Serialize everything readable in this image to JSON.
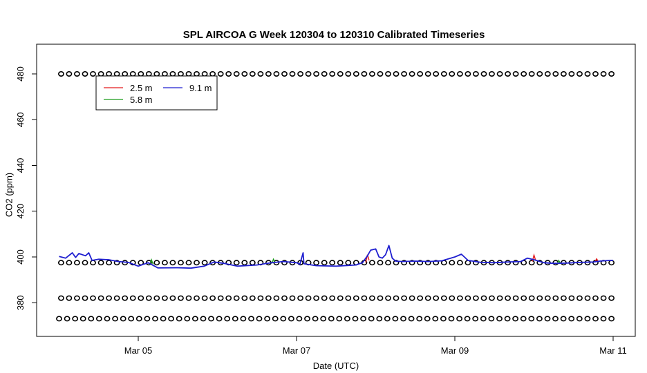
{
  "chart_data": {
    "type": "line",
    "title": "SPL AIRCOA G  Week 120304 to 120310  Calibrated Timeseries",
    "xlabel": "Date (UTC)",
    "ylabel": "CO2 (ppm)",
    "xlim": [
      "2012-03-04",
      "2012-03-11"
    ],
    "ylim": [
      368,
      485
    ],
    "x_ticks": [
      "Mar 05",
      "Mar 07",
      "Mar 09",
      "Mar 11"
    ],
    "y_ticks": [
      380,
      400,
      420,
      440,
      460,
      480
    ],
    "legend": {
      "placement": "top-left",
      "entries": [
        {
          "label": "2.5 m",
          "color": "#e41a1c"
        },
        {
          "label": "9.1 m",
          "color": "#1f1fd0"
        },
        {
          "label": "5.8 m",
          "color": "#1a9c1a"
        }
      ]
    },
    "series": [
      {
        "name": "9.1 m",
        "color": "#1f1fd0",
        "points": [
          [
            "2012-03-04 00:00",
            400.2
          ],
          [
            "2012-03-04 02:00",
            399.5
          ],
          [
            "2012-03-04 04:00",
            401.8
          ],
          [
            "2012-03-04 05:00",
            399.8
          ],
          [
            "2012-03-04 06:00",
            401.5
          ],
          [
            "2012-03-04 08:00",
            400.5
          ],
          [
            "2012-03-04 09:00",
            401.8
          ],
          [
            "2012-03-04 10:00",
            398.5
          ],
          [
            "2012-03-04 12:00",
            399.0
          ],
          [
            "2012-03-04 15:00",
            398.8
          ],
          [
            "2012-03-04 18:00",
            398.0
          ],
          [
            "2012-03-04 21:00",
            397.6
          ],
          [
            "2012-03-05 00:00",
            396.0
          ],
          [
            "2012-03-05 03:00",
            397.5
          ],
          [
            "2012-03-05 06:00",
            395.2
          ],
          [
            "2012-03-05 12:00",
            395.3
          ],
          [
            "2012-03-05 16:00",
            395.1
          ],
          [
            "2012-03-05 20:00",
            396.0
          ],
          [
            "2012-03-05 23:00",
            397.8
          ],
          [
            "2012-03-06 02:00",
            397.2
          ],
          [
            "2012-03-06 06:00",
            396.0
          ],
          [
            "2012-03-06 12:00",
            396.5
          ],
          [
            "2012-03-06 16:00",
            397.4
          ],
          [
            "2012-03-06 20:00",
            398.0
          ],
          [
            "2012-03-07 00:00",
            397.5
          ],
          [
            "2012-03-07 01:00",
            396.8
          ],
          [
            "2012-03-07 02:00",
            401.8
          ],
          [
            "2012-03-07 02:15",
            397.0
          ],
          [
            "2012-03-07 06:00",
            396.2
          ],
          [
            "2012-03-07 12:00",
            396.0
          ],
          [
            "2012-03-07 18:00",
            396.5
          ],
          [
            "2012-03-07 20:00",
            397.5
          ],
          [
            "2012-03-07 21:30",
            400.5
          ],
          [
            "2012-03-07 22:30",
            403.0
          ],
          [
            "2012-03-08 00:00",
            403.5
          ],
          [
            "2012-03-08 01:00",
            400.0
          ],
          [
            "2012-03-08 02:00",
            399.5
          ],
          [
            "2012-03-08 03:00",
            401.0
          ],
          [
            "2012-03-08 04:00",
            405.0
          ],
          [
            "2012-03-08 05:00",
            399.5
          ],
          [
            "2012-03-08 06:00",
            398.2
          ],
          [
            "2012-03-08 08:00",
            398.0
          ],
          [
            "2012-03-08 12:00",
            398.2
          ],
          [
            "2012-03-08 16:00",
            398.0
          ],
          [
            "2012-03-08 20:00",
            398.3
          ],
          [
            "2012-03-09 00:00",
            400.0
          ],
          [
            "2012-03-09 02:00",
            401.2
          ],
          [
            "2012-03-09 04:00",
            398.5
          ],
          [
            "2012-03-09 08:00",
            397.6
          ],
          [
            "2012-03-09 12:00",
            397.5
          ],
          [
            "2012-03-09 16:00",
            397.8
          ],
          [
            "2012-03-09 20:00",
            398.0
          ],
          [
            "2012-03-09 22:00",
            399.5
          ],
          [
            "2012-03-10 00:00",
            398.8
          ],
          [
            "2012-03-10 03:00",
            397.5
          ],
          [
            "2012-03-10 06:00",
            397.2
          ],
          [
            "2012-03-10 10:00",
            397.3
          ],
          [
            "2012-03-10 14:00",
            397.6
          ],
          [
            "2012-03-10 18:00",
            397.8
          ],
          [
            "2012-03-10 20:00",
            398.2
          ],
          [
            "2012-03-10 23:00",
            398.5
          ],
          [
            "2012-03-11 00:00",
            398.5
          ]
        ]
      },
      {
        "name": "2.5 m",
        "color": "#e41a1c",
        "points": [
          [
            "2012-03-09 23:30",
            398.0
          ],
          [
            "2012-03-10 00:00",
            400.8
          ],
          [
            "2012-03-10 00:30",
            398.5
          ],
          [
            "2012-03-10 18:30",
            397.8
          ],
          [
            "2012-03-10 19:00",
            399.2
          ],
          [
            "2012-03-10 19:30",
            398.0
          ],
          [
            "2012-03-07 21:00",
            397.5
          ],
          [
            "2012-03-07 21:30",
            401.0
          ],
          [
            "2012-03-07 22:00",
            398.5
          ]
        ]
      },
      {
        "name": "5.8 m",
        "color": "#1a9c1a",
        "points": [
          [
            "2012-03-05 03:30",
            396.5
          ],
          [
            "2012-03-05 04:00",
            398.8
          ],
          [
            "2012-03-05 04:30",
            396.8
          ],
          [
            "2012-03-06 16:30",
            397.2
          ],
          [
            "2012-03-06 17:00",
            399.0
          ],
          [
            "2012-03-06 17:30",
            397.5
          ],
          [
            "2012-03-10 07:00",
            397.0
          ],
          [
            "2012-03-10 07:30",
            398.5
          ],
          [
            "2012-03-10 08:00",
            397.2
          ]
        ]
      },
      {
        "name": "",
        "marker": "circle",
        "points_rows": [
          {
            "y": 480,
            "x_start": "2012-03-04 00:36",
            "x_end": "2012-03-10 23:30",
            "count": 70
          },
          {
            "y": 397.5,
            "x_start": "2012-03-04 00:36",
            "x_end": "2012-03-10 23:30",
            "count": 70
          },
          {
            "y": 382,
            "x_start": "2012-03-04 00:36",
            "x_end": "2012-03-10 23:30",
            "count": 70
          },
          {
            "y": 373,
            "x_start": "2012-03-04 00:00",
            "x_end": "2012-03-10 23:30",
            "count": 70
          }
        ]
      }
    ]
  }
}
